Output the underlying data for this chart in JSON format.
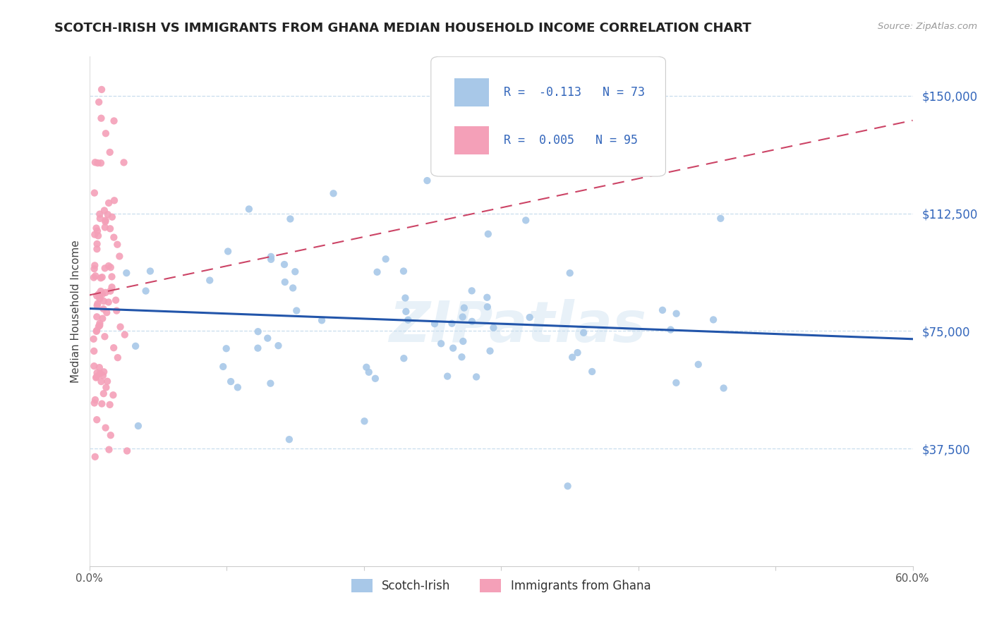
{
  "title": "SCOTCH-IRISH VS IMMIGRANTS FROM GHANA MEDIAN HOUSEHOLD INCOME CORRELATION CHART",
  "source": "Source: ZipAtlas.com",
  "ylabel": "Median Household Income",
  "xlim": [
    0.0,
    0.6
  ],
  "ylim": [
    0,
    162500
  ],
  "yticks": [
    37500,
    75000,
    112500,
    150000
  ],
  "ytick_labels": [
    "$37,500",
    "$75,000",
    "$112,500",
    "$150,000"
  ],
  "xticks": [
    0.0,
    0.1,
    0.2,
    0.3,
    0.4,
    0.5,
    0.6
  ],
  "xtick_labels": [
    "0.0%",
    "",
    "",
    "",
    "",
    "",
    "60.0%"
  ],
  "series1_name": "Scotch-Irish",
  "series1_color": "#a8c8e8",
  "series1_R": -0.113,
  "series1_N": 73,
  "series2_name": "Immigrants from Ghana",
  "series2_color": "#f4a0b8",
  "series2_R": 0.005,
  "series2_N": 95,
  "trend1_color": "#2255aa",
  "trend2_color": "#cc4466",
  "watermark": "ZIPatlas",
  "background_color": "#ffffff",
  "grid_color": "#c8dded",
  "title_fontsize": 13,
  "axis_label_color": "#3366bb"
}
